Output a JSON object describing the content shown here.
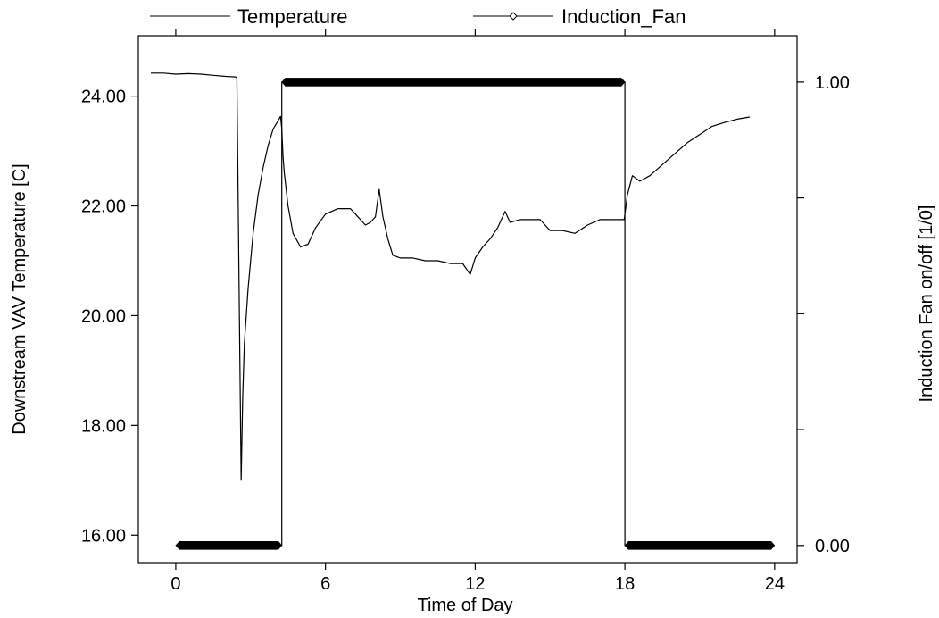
{
  "chart_data": {
    "type": "line",
    "x_axis": {
      "label": "Time of Day",
      "range": [
        -1.5,
        24.9
      ],
      "ticks": [
        0,
        6,
        12,
        18,
        24
      ],
      "tick_labels": [
        "0",
        "6",
        "12",
        "18",
        "24"
      ]
    },
    "y_left": {
      "label": "Downstream VAV Temperature [C]",
      "range": [
        15.5,
        25.1
      ],
      "ticks": [
        16,
        18,
        20,
        22,
        24
      ],
      "tick_labels": [
        "16.00",
        "18.00",
        "20.00",
        "22.00",
        "24.00"
      ]
    },
    "y_right": {
      "label": "Induction Fan on/off [1/0]",
      "range": [
        -0.037,
        1.1
      ],
      "ticks": [
        0,
        0.25,
        0.5,
        0.75,
        1
      ],
      "tick_labels": [
        "0.00",
        "",
        "",
        "",
        "1.00"
      ]
    },
    "legend": {
      "placement": "top",
      "entries": [
        {
          "name": "Temperature",
          "marker": "none"
        },
        {
          "name": "Induction_Fan",
          "marker": "diamond"
        }
      ]
    },
    "grid": false,
    "series": [
      {
        "name": "Temperature",
        "axis": "left",
        "color": "#000000",
        "points": [
          [
            -1.0,
            24.42
          ],
          [
            -0.5,
            24.42
          ],
          [
            0,
            24.4
          ],
          [
            0.5,
            24.41
          ],
          [
            1.0,
            24.4
          ],
          [
            1.5,
            24.38
          ],
          [
            2.0,
            24.36
          ],
          [
            2.4,
            24.35
          ],
          [
            2.45,
            24.33
          ],
          [
            2.55,
            20.0
          ],
          [
            2.62,
            17.0
          ],
          [
            2.68,
            18.5
          ],
          [
            2.75,
            19.5
          ],
          [
            2.9,
            20.5
          ],
          [
            3.1,
            21.5
          ],
          [
            3.3,
            22.2
          ],
          [
            3.5,
            22.7
          ],
          [
            3.7,
            23.1
          ],
          [
            3.9,
            23.4
          ],
          [
            4.1,
            23.55
          ],
          [
            4.2,
            23.63
          ],
          [
            4.25,
            23.4
          ],
          [
            4.3,
            22.9
          ],
          [
            4.35,
            22.6
          ],
          [
            4.5,
            22.0
          ],
          [
            4.7,
            21.5
          ],
          [
            5.0,
            21.25
          ],
          [
            5.3,
            21.3
          ],
          [
            5.6,
            21.6
          ],
          [
            6.0,
            21.85
          ],
          [
            6.5,
            21.95
          ],
          [
            7.0,
            21.95
          ],
          [
            7.3,
            21.8
          ],
          [
            7.6,
            21.65
          ],
          [
            7.8,
            21.7
          ],
          [
            8.0,
            21.8
          ],
          [
            8.15,
            22.3
          ],
          [
            8.3,
            21.8
          ],
          [
            8.5,
            21.4
          ],
          [
            8.7,
            21.1
          ],
          [
            9.0,
            21.05
          ],
          [
            9.5,
            21.05
          ],
          [
            10.0,
            21.0
          ],
          [
            10.5,
            21.0
          ],
          [
            11.0,
            20.95
          ],
          [
            11.5,
            20.95
          ],
          [
            11.8,
            20.75
          ],
          [
            12.0,
            21.05
          ],
          [
            12.3,
            21.25
          ],
          [
            12.6,
            21.4
          ],
          [
            12.9,
            21.6
          ],
          [
            13.2,
            21.9
          ],
          [
            13.4,
            21.7
          ],
          [
            13.8,
            21.75
          ],
          [
            14.2,
            21.75
          ],
          [
            14.6,
            21.75
          ],
          [
            15.0,
            21.55
          ],
          [
            15.5,
            21.55
          ],
          [
            16.0,
            21.5
          ],
          [
            16.5,
            21.65
          ],
          [
            17.0,
            21.75
          ],
          [
            17.5,
            21.75
          ],
          [
            17.97,
            21.75
          ],
          [
            18.1,
            22.2
          ],
          [
            18.3,
            22.55
          ],
          [
            18.6,
            22.45
          ],
          [
            19.0,
            22.55
          ],
          [
            19.5,
            22.75
          ],
          [
            20.0,
            22.95
          ],
          [
            20.5,
            23.15
          ],
          [
            21.0,
            23.3
          ],
          [
            21.5,
            23.45
          ],
          [
            22.0,
            23.52
          ],
          [
            22.5,
            23.58
          ],
          [
            23.0,
            23.62
          ]
        ]
      },
      {
        "name": "Induction_Fan",
        "axis": "right",
        "color": "#000000",
        "marker": "diamond",
        "segments": [
          {
            "from": 0,
            "to": 4.25,
            "value": 0
          },
          {
            "from": 4.25,
            "to": 18.0,
            "value": 1
          },
          {
            "from": 18.0,
            "to": 24.0,
            "value": 0
          }
        ]
      }
    ]
  }
}
